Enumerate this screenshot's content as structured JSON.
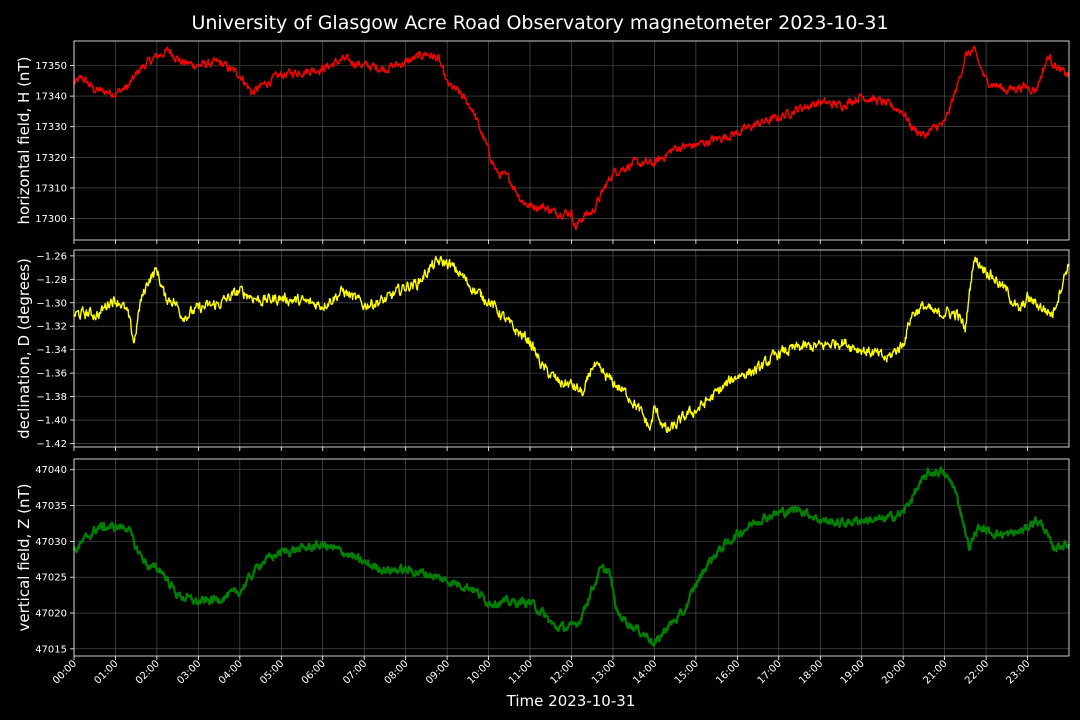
{
  "title": "University of Glasgow Acre Road Observatory magnetometer 2023-10-31",
  "colors": {
    "background": "#000000",
    "H": "#ff0000",
    "D": "#ffff00",
    "Z": "#008000",
    "grid": "#5a5a5a",
    "text": "#ffffff"
  },
  "chart_data": {
    "type": "line",
    "title": "University of Glasgow Acre Road Observatory magnetometer 2023-10-31",
    "xlabel": "Time 2023-10-31",
    "x_unit": "hours",
    "x_range": [
      0,
      24
    ],
    "x_ticks": [
      "00:00",
      "01:00",
      "02:00",
      "03:00",
      "04:00",
      "05:00",
      "06:00",
      "07:00",
      "08:00",
      "09:00",
      "10:00",
      "11:00",
      "12:00",
      "13:00",
      "14:00",
      "15:00",
      "16:00",
      "17:00",
      "18:00",
      "19:00",
      "20:00",
      "21:00",
      "22:00",
      "23:00"
    ],
    "grid": true,
    "panels": [
      {
        "name": "H",
        "ylabel": "horizontal field, H (nT)",
        "ylim": [
          17293,
          17358
        ],
        "yticks": [
          17300,
          17310,
          17320,
          17330,
          17340,
          17350
        ],
        "color": "#ff0000",
        "noise": 1.2,
        "x": [
          0,
          0.2,
          0.5,
          1.0,
          1.3,
          1.6,
          2.0,
          2.3,
          2.6,
          3.0,
          3.5,
          4.0,
          4.3,
          4.6,
          5.0,
          5.5,
          6.0,
          6.5,
          7.0,
          7.5,
          8.0,
          8.5,
          8.8,
          9.0,
          9.3,
          9.6,
          10.0,
          10.2,
          10.5,
          10.8,
          11.0,
          11.3,
          11.6,
          12.0,
          12.1,
          12.3,
          12.5,
          12.8,
          13.0,
          13.5,
          14.0,
          14.5,
          15.0,
          15.5,
          16.0,
          16.5,
          17.0,
          17.5,
          18.0,
          18.5,
          19.0,
          19.5,
          20.0,
          20.2,
          20.5,
          20.8,
          21.0,
          21.3,
          21.5,
          21.7,
          22.0,
          22.5,
          22.8,
          23.0,
          23.2,
          23.5,
          23.8,
          24.0
        ],
        "y": [
          17344,
          17346,
          17342,
          17341,
          17343,
          17349,
          17353,
          17355,
          17351,
          17350,
          17351,
          17347,
          17341,
          17344,
          17347,
          17348,
          17349,
          17352,
          17350,
          17349,
          17351,
          17354,
          17352,
          17344,
          17341,
          17336,
          17322,
          17315,
          17313,
          17306,
          17304,
          17304,
          17302,
          17302,
          17297,
          17301,
          17302,
          17310,
          17315,
          17318,
          17318,
          17323,
          17324,
          17326,
          17328,
          17331,
          17333,
          17336,
          17338,
          17337,
          17340,
          17338,
          17335,
          17330,
          17327,
          17330,
          17331,
          17343,
          17353,
          17355,
          17345,
          17342,
          17343,
          17343,
          17342,
          17353,
          17348,
          17347
        ]
      },
      {
        "name": "D",
        "ylabel": "declination, D (degrees)",
        "ylim": [
          -1.423,
          -1.255
        ],
        "yticks": [
          -1.42,
          -1.4,
          -1.38,
          -1.36,
          -1.34,
          -1.32,
          -1.3,
          -1.28,
          -1.26
        ],
        "color": "#ffff00",
        "noise": 0.004,
        "x": [
          0,
          0.3,
          0.6,
          0.9,
          1.1,
          1.3,
          1.45,
          1.6,
          1.8,
          2.0,
          2.2,
          2.4,
          2.6,
          2.7,
          3.0,
          3.5,
          4.0,
          4.5,
          5.0,
          5.5,
          6.0,
          6.5,
          7.0,
          7.5,
          8.0,
          8.3,
          8.6,
          8.8,
          9.0,
          9.3,
          9.7,
          10.0,
          10.3,
          10.6,
          11.0,
          11.3,
          11.7,
          12.0,
          12.3,
          12.5,
          12.8,
          13.0,
          13.4,
          13.7,
          13.9,
          14.0,
          14.3,
          14.5,
          14.8,
          15.0,
          15.4,
          15.8,
          16.0,
          16.5,
          17.0,
          17.5,
          18.0,
          18.5,
          19.0,
          19.3,
          19.6,
          20.0,
          20.2,
          20.5,
          20.8,
          21.0,
          21.3,
          21.5,
          21.7,
          22.0,
          22.5,
          22.8,
          23.0,
          23.3,
          23.6,
          24.0
        ],
        "y": [
          -1.31,
          -1.309,
          -1.31,
          -1.297,
          -1.299,
          -1.31,
          -1.334,
          -1.3,
          -1.28,
          -1.272,
          -1.296,
          -1.298,
          -1.31,
          -1.311,
          -1.305,
          -1.301,
          -1.29,
          -1.298,
          -1.296,
          -1.299,
          -1.302,
          -1.29,
          -1.302,
          -1.298,
          -1.286,
          -1.283,
          -1.27,
          -1.265,
          -1.266,
          -1.275,
          -1.291,
          -1.298,
          -1.31,
          -1.322,
          -1.333,
          -1.355,
          -1.368,
          -1.37,
          -1.378,
          -1.353,
          -1.362,
          -1.368,
          -1.38,
          -1.395,
          -1.408,
          -1.39,
          -1.41,
          -1.405,
          -1.395,
          -1.392,
          -1.38,
          -1.368,
          -1.362,
          -1.357,
          -1.343,
          -1.338,
          -1.337,
          -1.333,
          -1.34,
          -1.343,
          -1.348,
          -1.335,
          -1.31,
          -1.303,
          -1.31,
          -1.308,
          -1.31,
          -1.322,
          -1.262,
          -1.272,
          -1.29,
          -1.308,
          -1.296,
          -1.303,
          -1.31,
          -1.265
        ]
      },
      {
        "name": "Z",
        "ylabel": "vertical field, Z (nT)",
        "ylim": [
          47014,
          47041.5
        ],
        "yticks": [
          47015,
          47020,
          47025,
          47030,
          47035,
          47040
        ],
        "color": "#008000",
        "noise": 0.5,
        "x": [
          0,
          0.3,
          0.6,
          1.0,
          1.3,
          1.5,
          1.8,
          2.1,
          2.5,
          3.0,
          3.5,
          4.0,
          4.5,
          5.0,
          5.5,
          6.0,
          6.5,
          7.0,
          7.5,
          8.0,
          8.5,
          9.0,
          9.3,
          9.6,
          10.0,
          10.5,
          11.0,
          11.3,
          11.6,
          12.0,
          12.2,
          12.4,
          12.7,
          12.9,
          13.1,
          13.5,
          13.9,
          14.0,
          14.3,
          14.7,
          15.0,
          15.3,
          15.6,
          16.0,
          16.5,
          17.0,
          17.5,
          18.0,
          18.5,
          19.0,
          19.5,
          20.0,
          20.3,
          20.6,
          20.9,
          21.2,
          21.4,
          21.6,
          21.8,
          22.0,
          22.3,
          22.6,
          22.9,
          23.2,
          23.4,
          23.6,
          23.8,
          24.0
        ],
        "y": [
          47028.5,
          47030.5,
          47032,
          47032,
          47032,
          47029,
          47026.5,
          47026,
          47022.5,
          47021.5,
          47022,
          47023,
          47027,
          47028.5,
          47029,
          47029.5,
          47028.5,
          47027,
          47026,
          47026,
          47025.5,
          47024.5,
          47024,
          47023.5,
          47021.5,
          47021.5,
          47021.5,
          47020,
          47018,
          47018,
          47019,
          47022,
          47026,
          47026,
          47020,
          47018,
          47016.5,
          47015.5,
          47018,
          47020,
          47024,
          47027,
          47029,
          47031,
          47033,
          47034,
          47034.5,
          47033,
          47032.5,
          47033,
          47033,
          47034,
          47037,
          47039.5,
          47039.8,
          47038,
          47034,
          47029,
          47032,
          47031.5,
          47031,
          47031,
          47031.5,
          47033,
          47032,
          47029,
          47029.5,
          47029.5
        ]
      }
    ]
  }
}
